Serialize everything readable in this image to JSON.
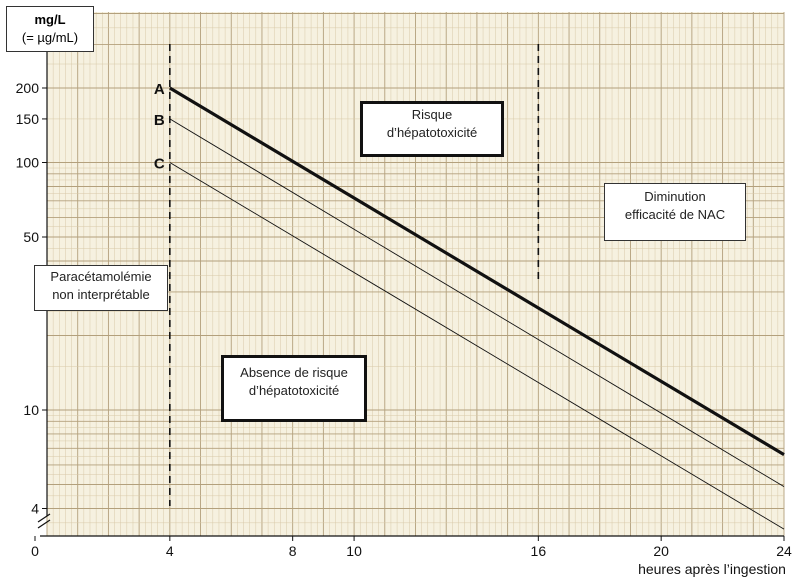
{
  "y_unit": {
    "main": "mg/L",
    "sub": "(= µg/mL)"
  },
  "x_axis_label": "heures après l’ingestion",
  "annotations": {
    "risk": [
      "Risque",
      "d’hépatotoxicité"
    ],
    "no_risk": [
      "Absence de risque",
      "d’hépatotoxicité"
    ],
    "nac": [
      "Diminution",
      "efficacité de NAC"
    ],
    "uninterpretable": [
      "Paracétamolémie",
      "non interprétable"
    ]
  },
  "colors": {
    "grid_minor": "#d8c9a8",
    "grid_major": "#b3a07c",
    "background": "#f6f1e0",
    "line": "#111111"
  },
  "chart_data": {
    "type": "line",
    "y_scale": "log",
    "xlim": [
      0,
      24
    ],
    "ylim": [
      3,
      300
    ],
    "x_ticks": [
      0,
      4,
      8,
      10,
      16,
      20,
      24
    ],
    "y_ticks": [
      4,
      10,
      50,
      100,
      150,
      200
    ],
    "vertical_markers": [
      4,
      16
    ],
    "series": [
      {
        "name": "A",
        "x": [
          4,
          24
        ],
        "y": [
          200,
          6.6
        ],
        "style": "thick"
      },
      {
        "name": "B",
        "x": [
          4,
          24
        ],
        "y": [
          150,
          4.9
        ],
        "style": "thin"
      },
      {
        "name": "C",
        "x": [
          4,
          24
        ],
        "y": [
          100,
          3.3
        ],
        "style": "thin"
      }
    ]
  }
}
